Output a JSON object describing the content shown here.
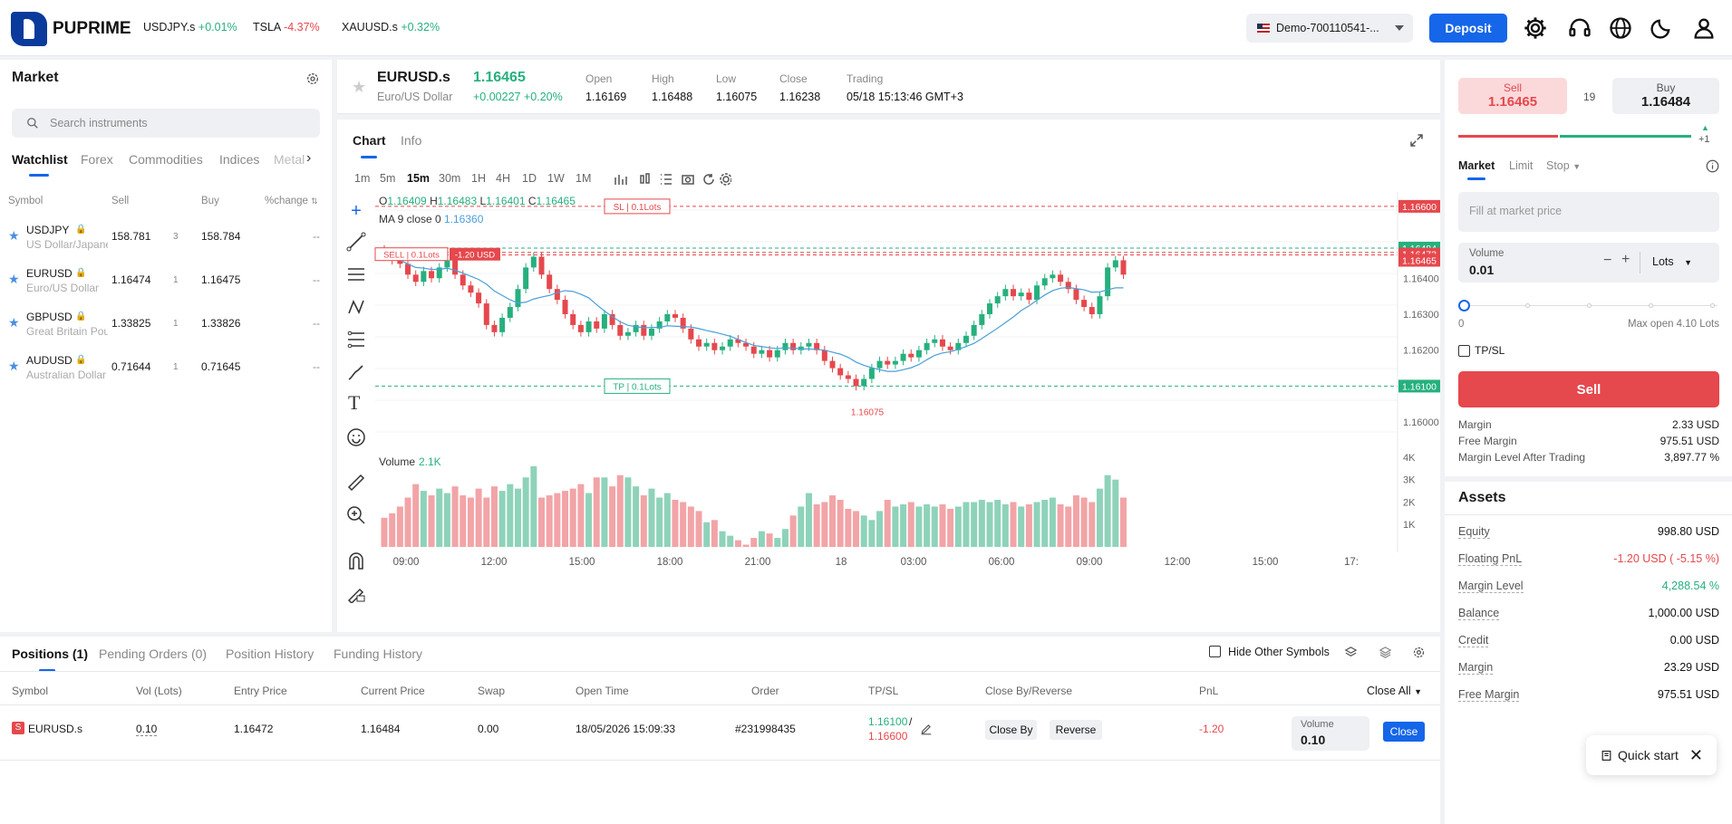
{
  "brand": {
    "name": "PUPRIME"
  },
  "tickers": [
    {
      "symbol": "USDJPY.s",
      "change": "+0.01%",
      "dir": "up"
    },
    {
      "symbol": "TSLA",
      "change": "-4.37%",
      "dir": "dn"
    },
    {
      "symbol": "XAUUSD.s",
      "change": "+0.32%",
      "dir": "up"
    }
  ],
  "account": {
    "label": "Demo-700110541-..."
  },
  "header": {
    "deposit_label": "Deposit"
  },
  "market": {
    "title": "Market",
    "search_placeholder": "Search instruments",
    "tabs": [
      "Watchlist",
      "Forex",
      "Commodities",
      "Indices",
      "Metal"
    ],
    "columns": {
      "symbol": "Symbol",
      "sell": "Sell",
      "buy": "Buy",
      "change": "%change"
    },
    "rows": [
      {
        "symbol": "USDJPY",
        "desc": "US Dollar/Japanese Yen",
        "sell": "158.781",
        "spread": "3",
        "buy": "158.784",
        "change": "--"
      },
      {
        "symbol": "EURUSD",
        "desc": "Euro/US Dollar",
        "sell": "1.16474",
        "spread": "1",
        "buy": "1.16475",
        "change": "--"
      },
      {
        "symbol": "GBPUSD",
        "desc": "Great Britain Pound",
        "sell": "1.33825",
        "spread": "1",
        "buy": "1.33826",
        "change": "--"
      },
      {
        "symbol": "AUDUSD",
        "desc": "Australian Dollar",
        "sell": "0.71644",
        "spread": "1",
        "buy": "0.71645",
        "change": "--"
      }
    ]
  },
  "instrument": {
    "symbol": "EURUSD.s",
    "desc": "Euro/US Dollar",
    "price": "1.16465",
    "change": "+0.00227",
    "change_pct": "+0.20%",
    "stats": [
      {
        "label": "Open",
        "value": "1.16169"
      },
      {
        "label": "High",
        "value": "1.16488"
      },
      {
        "label": "Low",
        "value": "1.16075"
      },
      {
        "label": "Close",
        "value": "1.16238"
      },
      {
        "label": "Trading",
        "value": "05/18 15:13:46 GMT+3"
      }
    ]
  },
  "chart_tabs": [
    "Chart",
    "Info"
  ],
  "timeframes": [
    "1m",
    "5m",
    "15m",
    "30m",
    "1H",
    "4H",
    "1D",
    "1W",
    "1M"
  ],
  "active_timeframe": "15m",
  "chart_data": {
    "type": "candlestick",
    "legend": {
      "o": "1.16409",
      "h": "1.16483",
      "l": "1.16401",
      "c": "1.16465",
      "ma": "MA 9 close 0",
      "ma_value": "1.16360",
      "volume_label": "Volume",
      "volume_value": "2.1K"
    },
    "y_ticks": [
      "1.16400",
      "1.16300",
      "1.16200",
      "1.16000"
    ],
    "ylim": [
      1.1596,
      1.1664
    ],
    "x_ticks": [
      "09:00",
      "12:00",
      "15:00",
      "18:00",
      "21:00",
      "18",
      "03:00",
      "06:00",
      "09:00",
      "12:00",
      "15:00",
      "17:"
    ],
    "vol_ticks": [
      "4K",
      "3K",
      "2K",
      "1K"
    ],
    "price_tags": [
      {
        "value": "1.16600",
        "color": "#e5484d"
      },
      {
        "value": "1.16484",
        "color": "#26b07e"
      },
      {
        "value": "1.16472",
        "color": "#e5484d"
      },
      {
        "value": "1.16465",
        "color": "#e5484d"
      },
      {
        "value": "1.16100",
        "color": "#26b07e"
      }
    ],
    "sl_label": "SL | 0.1Lots",
    "tp_label": "TP | 0.1Lots",
    "sell_label": "SELL | 0.1Lots",
    "pnl_label": "-1.20 USD",
    "low_label": "1.16075",
    "closes": [
      1.1646,
      1.1645,
      1.1644,
      1.1641,
      1.1639,
      1.1642,
      1.164,
      1.1643,
      1.1645,
      1.1641,
      1.1638,
      1.1636,
      1.1633,
      1.1627,
      1.1625,
      1.1629,
      1.1632,
      1.1637,
      1.1643,
      1.1646,
      1.1641,
      1.1637,
      1.1634,
      1.163,
      1.1627,
      1.1625,
      1.1628,
      1.1626,
      1.163,
      1.1627,
      1.1624,
      1.1625,
      1.1627,
      1.1624,
      1.1626,
      1.1628,
      1.163,
      1.1629,
      1.1626,
      1.1623,
      1.1621,
      1.1622,
      1.162,
      1.1621,
      1.1623,
      1.1622,
      1.1621,
      1.1619,
      1.162,
      1.1618,
      1.162,
      1.1622,
      1.162,
      1.1621,
      1.1622,
      1.162,
      1.1617,
      1.1615,
      1.1613,
      1.1612,
      1.161,
      1.1612,
      1.1615,
      1.1617,
      1.1616,
      1.1617,
      1.1619,
      1.1618,
      1.162,
      1.1622,
      1.1623,
      1.1621,
      1.162,
      1.1622,
      1.1624,
      1.1627,
      1.163,
      1.1633,
      1.1635,
      1.1637,
      1.1635,
      1.1636,
      1.1634,
      1.1638,
      1.164,
      1.1641,
      1.1639,
      1.1637,
      1.1634,
      1.1632,
      1.163,
      1.1635,
      1.1643,
      1.1645,
      1.1641
    ],
    "volumes": [
      1.3,
      1.5,
      1.8,
      2.2,
      2.8,
      2.5,
      2.3,
      2.6,
      2.4,
      2.7,
      2.3,
      2.2,
      2.6,
      2.2,
      2.7,
      2.5,
      2.8,
      2.6,
      3.1,
      3.6,
      2.2,
      2.3,
      2.4,
      2.5,
      2.6,
      2.8,
      2.4,
      3.1,
      3.1,
      2.7,
      3.2,
      3.1,
      2.7,
      2.3,
      2.6,
      2.2,
      2.4,
      2.1,
      2.0,
      1.8,
      1.6,
      1.1,
      1.2,
      0.7,
      0.5,
      0.3,
      0.1,
      0.4,
      0.7,
      0.6,
      0.4,
      0.8,
      1.4,
      1.8,
      2.4,
      1.9,
      2.0,
      2.3,
      2.1,
      1.7,
      1.6,
      1.4,
      1.2,
      1.6,
      2.1,
      1.8,
      1.9,
      2.0,
      1.8,
      1.9,
      1.8,
      1.9,
      1.7,
      1.8,
      2.0,
      2.0,
      2.1,
      2.0,
      2.1,
      1.9,
      2.0,
      1.8,
      1.9,
      2.0,
      2.1,
      2.2,
      1.9,
      1.8,
      2.3,
      2.2,
      2.0,
      2.6,
      3.2,
      3.0,
      2.2
    ]
  },
  "trade": {
    "sell_label": "Sell",
    "sell_price": "1.16465",
    "spread": "19",
    "buy_label": "Buy",
    "buy_price": "1.16484",
    "tick": "+1",
    "order_tabs": [
      "Market",
      "Limit",
      "Stop"
    ],
    "fill_placeholder": "Fill at market price",
    "volume_label": "Volume",
    "volume_value": "0.01",
    "unit": "Lots",
    "slider_min": "0",
    "slider_max": "Max open 4.10 Lots",
    "tpsl_label": "TP/SL",
    "sell_button": "Sell",
    "info": [
      {
        "k": "Margin",
        "v": "2.33 USD"
      },
      {
        "k": "Free Margin",
        "v": "975.51 USD"
      },
      {
        "k": "Margin Level After Trading",
        "v": "3,897.77 %"
      }
    ]
  },
  "assets": {
    "title": "Assets",
    "rows": [
      {
        "k": "Equity",
        "v": "998.80 USD",
        "c": "#111"
      },
      {
        "k": "Floating PnL",
        "v": "-1.20 USD ( -5.15 %)",
        "c": "#e5484d"
      },
      {
        "k": "Margin Level",
        "v": "4,288.54 %",
        "c": "#26b07e"
      },
      {
        "k": "Balance",
        "v": "1,000.00 USD",
        "c": "#111"
      },
      {
        "k": "Credit",
        "v": "0.00 USD",
        "c": "#111"
      },
      {
        "k": "Margin",
        "v": "23.29 USD",
        "c": "#111"
      },
      {
        "k": "Free Margin",
        "v": "975.51 USD",
        "c": "#111"
      }
    ]
  },
  "positions": {
    "tabs": [
      "Positions (1)",
      "Pending Orders (0)",
      "Position History",
      "Funding History"
    ],
    "hide_other": "Hide Other Symbols",
    "columns": [
      "Symbol",
      "Vol (Lots)",
      "Entry Price",
      "Current Price",
      "Swap",
      "Open Time",
      "Order",
      "TP/SL",
      "Close By/Reverse",
      "PnL"
    ],
    "close_all": "Close All",
    "row": {
      "badge": "S",
      "symbol": "EURUSD.s",
      "vol": "0.10",
      "entry": "1.16472",
      "current": "1.16484",
      "swap": "0.00",
      "open_time": "18/05/2026 15:09:33",
      "order": "#231998435",
      "tp": "1.16100",
      "sep": "/",
      "sl": "1.16600",
      "close_by": "Close By",
      "reverse": "Reverse",
      "pnl": "-1.20",
      "vol_label": "Volume",
      "vol_value": "0.10",
      "close": "Close"
    }
  },
  "quick_start": "Quick start"
}
